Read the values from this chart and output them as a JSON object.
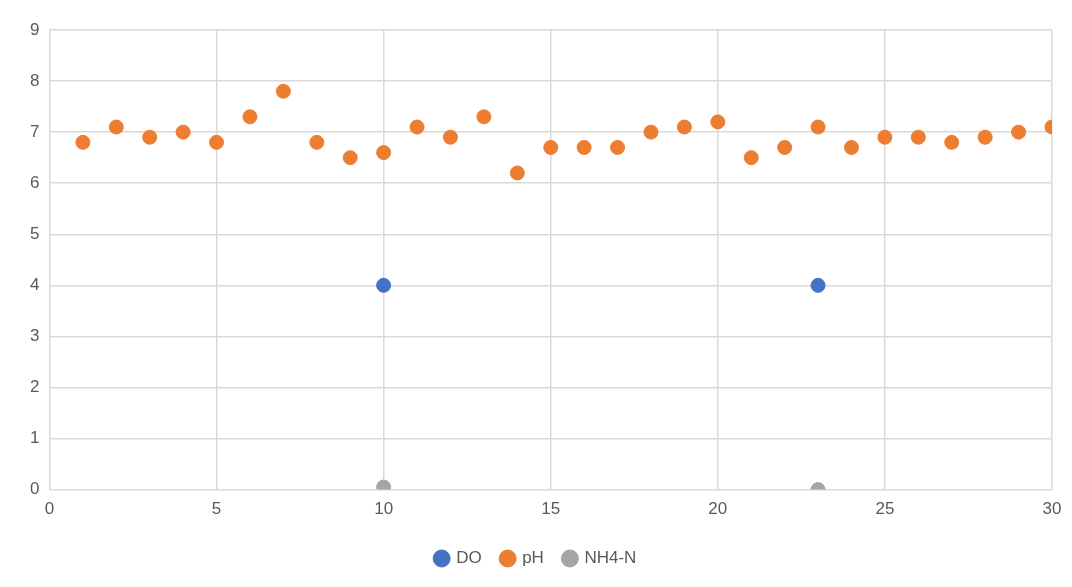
{
  "chart_data": {
    "type": "scatter",
    "x": [
      1,
      2,
      3,
      4,
      5,
      6,
      7,
      8,
      9,
      10,
      11,
      12,
      13,
      14,
      15,
      16,
      17,
      18,
      19,
      20,
      21,
      22,
      23,
      24,
      25,
      26,
      27,
      28,
      29,
      30
    ],
    "series": [
      {
        "name": "DO",
        "color": "#4472c4",
        "values": [
          null,
          null,
          null,
          null,
          null,
          null,
          null,
          null,
          null,
          4,
          null,
          null,
          null,
          null,
          null,
          null,
          null,
          null,
          null,
          null,
          null,
          null,
          4,
          null,
          null,
          null,
          null,
          null,
          null,
          null
        ]
      },
      {
        "name": "pH",
        "color": "#ed7d31",
        "values": [
          6.8,
          7.1,
          6.9,
          7.0,
          6.8,
          7.3,
          7.8,
          6.8,
          6.5,
          6.6,
          7.1,
          6.9,
          7.3,
          6.2,
          6.7,
          6.7,
          6.7,
          7.0,
          7.1,
          7.2,
          6.5,
          6.7,
          7.1,
          6.7,
          6.9,
          6.9,
          6.8,
          6.9,
          7.0,
          7.1
        ]
      },
      {
        "name": "NH4-N",
        "color": "#a5a5a5",
        "values": [
          null,
          null,
          null,
          null,
          null,
          null,
          null,
          null,
          null,
          0.05,
          null,
          null,
          null,
          null,
          null,
          null,
          null,
          null,
          null,
          null,
          null,
          null,
          0,
          null,
          null,
          null,
          null,
          null,
          null,
          null
        ]
      }
    ],
    "xlim": [
      0,
      30
    ],
    "xticks": [
      0,
      5,
      10,
      15,
      20,
      25,
      30
    ],
    "ylim": [
      0,
      9
    ],
    "yticks": [
      0,
      1,
      2,
      3,
      4,
      5,
      6,
      7,
      8,
      9
    ],
    "grid": true,
    "legend": "bottom",
    "marker": "circle"
  }
}
